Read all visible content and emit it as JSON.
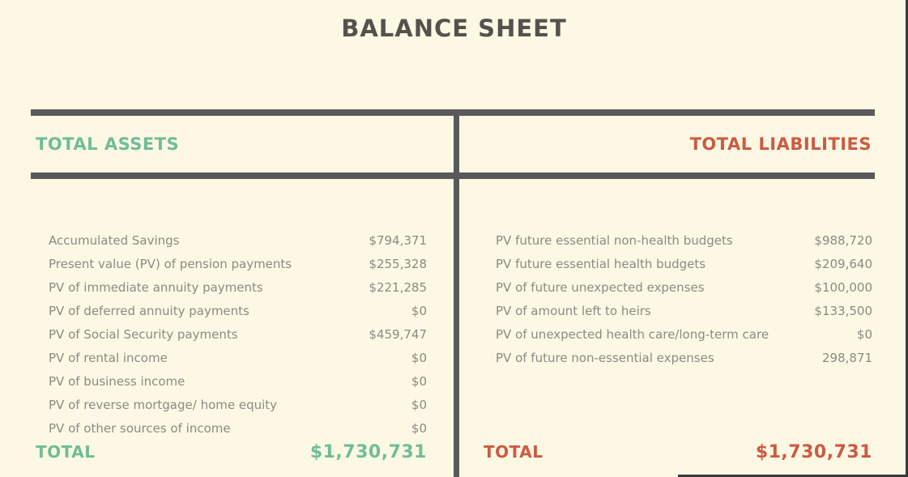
{
  "title": "BALANCE SHEET",
  "colors": {
    "background": "#FDF8E3",
    "bar_gray": "#595959",
    "title_gray": "#55524E",
    "row_text_gray": "#8B8A84",
    "assets_green": "#6FBD98",
    "liabilities_red": "#CC5A43"
  },
  "assets": {
    "header": "TOTAL ASSETS",
    "rows": [
      {
        "label": "Accumulated Savings",
        "value": "$794,371"
      },
      {
        "label": "Present value (PV) of pension payments",
        "value": "$255,328"
      },
      {
        "label": "PV of immediate annuity payments",
        "value": "$221,285"
      },
      {
        "label": "PV of deferred annuity payments",
        "value": "$0"
      },
      {
        "label": "PV of Social Security payments",
        "value": "$459,747"
      },
      {
        "label": "PV of rental income",
        "value": "$0"
      },
      {
        "label": "PV of business income",
        "value": "$0"
      },
      {
        "label": "PV of reverse mortgage/ home equity",
        "value": "$0"
      },
      {
        "label": "PV of other sources of income",
        "value": "$0"
      }
    ],
    "total_label": "TOTAL",
    "total_value": "$1,730,731"
  },
  "liabilities": {
    "header": "TOTAL LIABILITIES",
    "rows": [
      {
        "label": "PV future essential non-health budgets",
        "value": "$988,720"
      },
      {
        "label": "PV future essential health budgets",
        "value": "$209,640"
      },
      {
        "label": "PV of future unexpected expenses",
        "value": "$100,000"
      },
      {
        "label": "PV of amount left to heirs",
        "value": "$133,500"
      },
      {
        "label": "PV of unexpected health care/long-term care",
        "value": "$0"
      },
      {
        "label": "PV of future non-essential expenses",
        "value": "298,871"
      }
    ],
    "total_label": "TOTAL",
    "total_value": "$1,730,731"
  }
}
